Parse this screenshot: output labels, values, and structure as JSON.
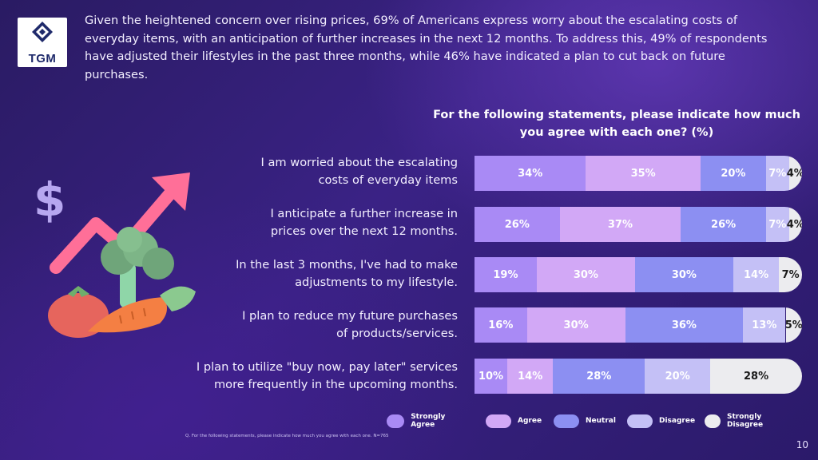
{
  "logo_text": "TGM",
  "intro": "Given the heightened concern over rising prices, 69% of Americans express worry about the escalating costs of everyday items, with an anticipation of further increases in the next 12 months. To address this, 49% of respondents have adjusted their lifestyles in the past three months, while 46% have indicated a plan to cut back on future purchases.",
  "footnote": "Q. For the following statements, please indicate how much you agree with each one. N=765",
  "page_number": "10",
  "colors": {
    "strongly_agree": "#a98af5",
    "agree": "#d2a8f6",
    "neutral": "#8c8ff2",
    "disagree": "#c4c0f6",
    "strongly_disagree": "#ececef"
  },
  "chart_data": {
    "type": "bar",
    "orientation": "horizontal",
    "stacked": true,
    "title_lines": [
      "For the following statements, please indicate how much",
      "you agree with each one? (%)"
    ],
    "categories": [
      [
        "I am worried about the escalating",
        "costs of everyday items"
      ],
      [
        "I anticipate a further increase in",
        "prices over the next 12 months."
      ],
      [
        "In the last 3 months, I've had to make",
        "adjustments to my lifestyle."
      ],
      [
        "I plan to reduce my future purchases",
        "of products/services."
      ],
      [
        "I plan to utilize \"buy now, pay later\" services",
        "more frequently in the upcoming months."
      ]
    ],
    "series": [
      {
        "name": "Strongly Agree",
        "values": [
          34,
          26,
          19,
          16,
          10
        ]
      },
      {
        "name": "Agree",
        "values": [
          35,
          37,
          30,
          30,
          14
        ]
      },
      {
        "name": "Neutral",
        "values": [
          20,
          26,
          30,
          36,
          28
        ]
      },
      {
        "name": "Disagree",
        "values": [
          7,
          7,
          14,
          13,
          20
        ]
      },
      {
        "name": "Strongly Disagree",
        "values": [
          4,
          4,
          7,
          5,
          28
        ]
      }
    ],
    "unit": "%",
    "legend_position": "bottom"
  }
}
